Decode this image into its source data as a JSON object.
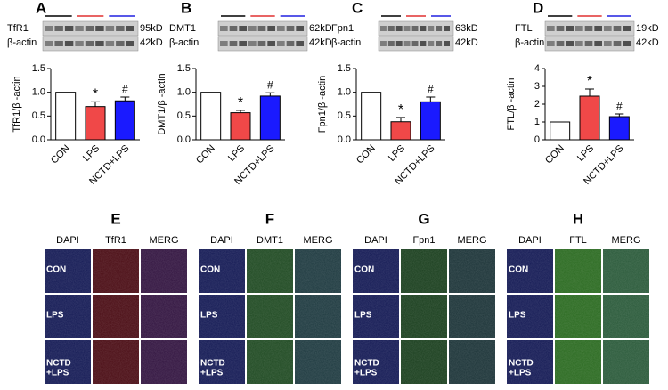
{
  "chart_data": [
    {
      "type": "bar",
      "ylabel": "TfR1/β -actin",
      "categories": [
        "CON",
        "LPS",
        "NCTD+LPS"
      ],
      "values": [
        1.0,
        0.7,
        0.82
      ],
      "errors": [
        0,
        0.1,
        0.08
      ],
      "colors": [
        "#ffffff",
        "#f04848",
        "#1a1aff"
      ],
      "annotations": [
        null,
        "*",
        "#"
      ],
      "ylim": [
        0,
        1.5
      ],
      "yticks": [
        {
          "value": 0,
          "label": "0.0"
        },
        0.5,
        {
          "value": 1,
          "label": "1.0"
        },
        1.5
      ]
    },
    {
      "type": "bar",
      "ylabel": "DMT1/β -actin",
      "categories": [
        "CON",
        "LPS",
        "NCTD+LPS"
      ],
      "values": [
        1.0,
        0.57,
        0.92
      ],
      "errors": [
        0,
        0.05,
        0.07
      ],
      "colors": [
        "#ffffff",
        "#f04848",
        "#1a1aff"
      ],
      "annotations": [
        null,
        "*",
        "#"
      ],
      "ylim": [
        0,
        1.5
      ],
      "yticks": [
        {
          "value": 0,
          "label": "0.0"
        },
        0.5,
        {
          "value": 1,
          "label": "1.0"
        },
        1.5
      ]
    },
    {
      "type": "bar",
      "ylabel": "Fpn1/β -actin",
      "categories": [
        "CON",
        "LPS",
        "NCTD+LPS"
      ],
      "values": [
        1.0,
        0.38,
        0.8
      ],
      "errors": [
        0,
        0.09,
        0.1
      ],
      "colors": [
        "#ffffff",
        "#f04848",
        "#1a1aff"
      ],
      "annotations": [
        null,
        "*",
        "#"
      ],
      "ylim": [
        0,
        1.5
      ],
      "yticks": [
        {
          "value": 0,
          "label": "0.0"
        },
        0.5,
        {
          "value": 1,
          "label": "1.0"
        },
        1.5
      ]
    },
    {
      "type": "bar",
      "ylabel": "FTL/β -actin",
      "categories": [
        "CON",
        "LPS",
        "NCTD+LPS"
      ],
      "values": [
        1.0,
        2.45,
        1.3
      ],
      "errors": [
        0,
        0.4,
        0.15
      ],
      "colors": [
        "#ffffff",
        "#f04848",
        "#1a1aff"
      ],
      "annotations": [
        null,
        "*",
        "#"
      ],
      "ylim": [
        0,
        4
      ],
      "yticks": [
        0,
        1,
        2,
        3,
        4
      ]
    }
  ],
  "blots": [
    {
      "letter": "A",
      "protein": "TfR1",
      "protein_kd": "95kD",
      "control": "β-actin",
      "control_kd": "42kD"
    },
    {
      "letter": "B",
      "protein": "DMT1",
      "protein_kd": "62kD",
      "control": "β-actin",
      "control_kd": "42kD"
    },
    {
      "letter": "C",
      "protein": "Fpn1",
      "protein_kd": "63kD",
      "control": "β-actin",
      "control_kd": "42kD"
    },
    {
      "letter": "D",
      "protein": "FTL",
      "protein_kd": "19kD",
      "control": "β-actin",
      "control_kd": "42kD"
    }
  ],
  "if_panels": [
    {
      "letter": "E",
      "columns": [
        "DAPI",
        "TfR1",
        "MERG"
      ],
      "rows": [
        [
          "CON"
        ],
        [
          "LPS"
        ],
        [
          "NCTD",
          "+LPS"
        ]
      ]
    },
    {
      "letter": "F",
      "columns": [
        "DAPI",
        "DMT1",
        "MERG"
      ],
      "rows": [
        [
          "CON"
        ],
        [
          "LPS"
        ],
        [
          "NCTD",
          "+LPS"
        ]
      ]
    },
    {
      "letter": "G",
      "columns": [
        "DAPI",
        "Fpn1",
        "MERG"
      ],
      "rows": [
        [
          "CON"
        ],
        [
          "LPS"
        ],
        [
          "NCTD",
          "+LPS"
        ]
      ]
    },
    {
      "letter": "H",
      "columns": [
        "DAPI",
        "FTL",
        "MERG"
      ],
      "rows": [
        [
          "CON"
        ],
        [
          "LPS"
        ],
        [
          "NCTD",
          "+LPS"
        ]
      ]
    }
  ]
}
